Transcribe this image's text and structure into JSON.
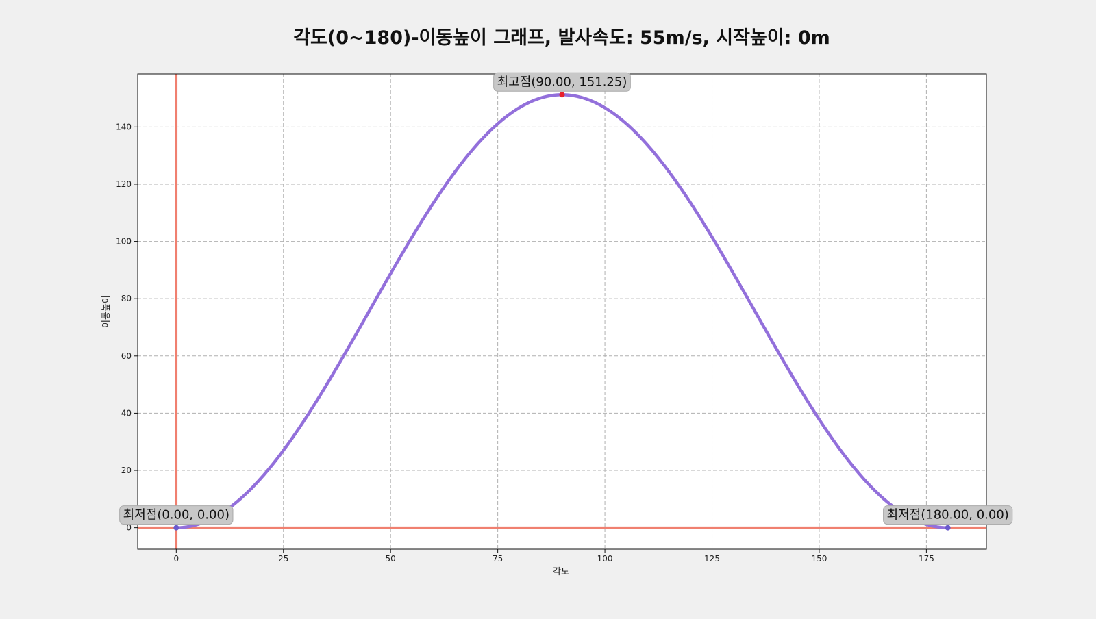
{
  "chart_data": {
    "type": "line",
    "title": "각도(0~180)-이동높이 그래프, 발사속도: 55m/s, 시작높이: 0m",
    "xlabel": "각도",
    "ylabel": "이동높이",
    "xlim": [
      -9,
      189
    ],
    "ylim": [
      -7.5,
      158.5
    ],
    "xticks": [
      0,
      25,
      50,
      75,
      100,
      125,
      150,
      175
    ],
    "yticks": [
      0,
      20,
      40,
      60,
      80,
      100,
      120,
      140
    ],
    "grid": true,
    "series": [
      {
        "color": "#9370db",
        "formula": "151.25 * sin(x)^2",
        "x": [
          0,
          10,
          20,
          30,
          40,
          50,
          60,
          70,
          80,
          90,
          100,
          110,
          120,
          130,
          140,
          150,
          160,
          170,
          180
        ],
        "y": [
          0.0,
          4.56,
          17.69,
          37.81,
          62.49,
          88.76,
          113.44,
          133.56,
          146.69,
          151.25,
          146.69,
          133.56,
          113.44,
          88.76,
          62.49,
          37.81,
          17.69,
          4.56,
          0.0
        ]
      }
    ],
    "reference_lines": [
      {
        "orientation": "vertical",
        "value": 0,
        "color": "#f08070"
      },
      {
        "orientation": "horizontal",
        "value": 0,
        "color": "#f08070"
      }
    ],
    "annotations": [
      {
        "text": "최고점(90.00, 151.25)",
        "x": 90,
        "y": 151.25,
        "marker_color": "#e8212d"
      },
      {
        "text": "최저점(0.00, 0.00)",
        "x": 0,
        "y": 0,
        "marker_color": "#6a5acd"
      },
      {
        "text": "최저점(180.00, 0.00)",
        "x": 180,
        "y": 0,
        "marker_color": "#6a5acd"
      }
    ]
  }
}
